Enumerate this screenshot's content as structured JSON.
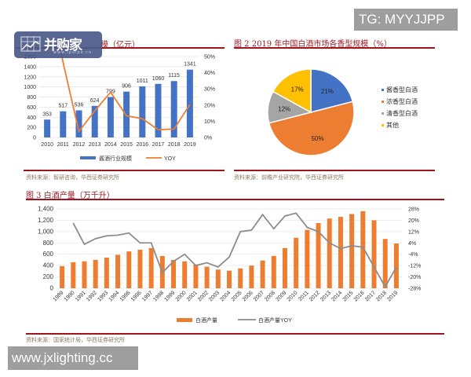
{
  "watermarks": {
    "top_right": "TG: MYYJJPP",
    "bottom_left": "www.jxlighting.cc",
    "logo_text": "并购家",
    "logo_url_text": "www.ipoipo.cn"
  },
  "figure1": {
    "title_visible": "模（亿元）",
    "source": "资料来源：智研咨询，华西证券研究所"
  },
  "figure2": {
    "title": "图 2 2019 年中国白酒市场各香型规模（%）",
    "source": "资料来源：前瞻产业研究院，华西证券研究所"
  },
  "figure3": {
    "title": "图 3 白酒产量（万千升）",
    "source": "资料来源：国家统计局，华西证券研究所"
  },
  "chart_data": [
    {
      "type": "bar",
      "title": "酱酒行业规模（亿元）",
      "categories": [
        "2010",
        "2011",
        "2012",
        "2013",
        "2014",
        "2015",
        "2016",
        "2017",
        "2018",
        "2019"
      ],
      "series": [
        {
          "name": "酱酒行业规模",
          "type": "bar",
          "axis": "left",
          "color": "#4472c4",
          "values": [
            353,
            517,
            536,
            624,
            799,
            906,
            1011,
            1060,
            1115,
            1341
          ]
        },
        {
          "name": "YOY",
          "type": "line",
          "axis": "right",
          "color": "#ed7d31",
          "values": [
            null,
            46.5,
            3.7,
            16.4,
            28.0,
            13.4,
            11.6,
            4.8,
            5.2,
            20.3
          ]
        }
      ],
      "yticks_left": [
        "0",
        "200",
        "400",
        "600",
        "800",
        "1000",
        "1200",
        "1400",
        "1600"
      ],
      "yticks_right": [
        "0%",
        "10%",
        "20%",
        "30%",
        "40%",
        "50%"
      ],
      "ylim_left": [
        0,
        1600
      ],
      "ylim_right": [
        0,
        50
      ],
      "legend": [
        "酱酒行业规模",
        "YOY"
      ],
      "legend_position": "bottom"
    },
    {
      "type": "pie",
      "title": "2019 年中国白酒市场各香型规模（%）",
      "categories": [
        "酱香型白酒",
        "浓香型白酒",
        "清香型白酒",
        "其他"
      ],
      "values": [
        21,
        50,
        12,
        17
      ],
      "labels": [
        "21%",
        "50%",
        "12%",
        "17%"
      ],
      "colors": [
        "#4472c4",
        "#ed7d31",
        "#a5a5a5",
        "#ffc000"
      ],
      "legend_position": "right"
    },
    {
      "type": "bar",
      "title": "白酒产量（万千升）",
      "categories": [
        "1989",
        "1990",
        "1991",
        "1992",
        "1993",
        "1994",
        "1995",
        "1996",
        "1997",
        "1998",
        "1999",
        "2000",
        "2001",
        "2002",
        "2003",
        "2004",
        "2005",
        "2006",
        "2007",
        "2008",
        "2009",
        "2010",
        "2011",
        "2012",
        "2013",
        "2014",
        "2015",
        "2016",
        "2017",
        "2018",
        "2019"
      ],
      "series": [
        {
          "name": "白酒产量",
          "type": "bar",
          "axis": "left",
          "color": "#ed7d31",
          "values": [
            390,
            460,
            475,
            500,
            540,
            590,
            650,
            680,
            710,
            570,
            500,
            475,
            420,
            380,
            330,
            310,
            350,
            400,
            490,
            570,
            710,
            890,
            1030,
            1150,
            1230,
            1260,
            1310,
            1360,
            1200,
            870,
            790
          ]
        },
        {
          "name": "白酒产量YOY",
          "type": "line",
          "axis": "right",
          "color": "#8c8c8c",
          "values": [
            null,
            18,
            3,
            7,
            9,
            9.5,
            11,
            4,
            4,
            -17,
            -9,
            -4,
            -12,
            -10,
            -13,
            -6,
            12,
            13,
            24,
            14,
            23,
            25,
            15,
            12,
            4,
            0,
            2,
            1,
            -13,
            -27,
            -13
          ]
        }
      ],
      "yticks_left": [
        "0",
        "200",
        "400",
        "600",
        "800",
        "1,000",
        "1,200",
        "1,400"
      ],
      "yticks_right": [
        "-28%",
        "-20%",
        "-12%",
        "-4%",
        "4%",
        "12%",
        "20%",
        "28%"
      ],
      "ylim_left": [
        0,
        1400
      ],
      "ylim_right": [
        -28,
        28
      ],
      "legend": [
        "白酒产量",
        "白酒产量YOY"
      ],
      "legend_position": "bottom"
    }
  ]
}
